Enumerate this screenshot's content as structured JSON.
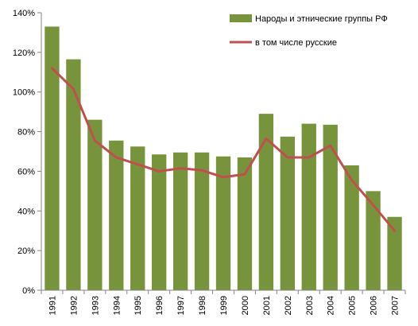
{
  "chart_data": {
    "type": "bar",
    "title": "",
    "xlabel": "",
    "ylabel": "",
    "ylim": [
      0,
      140
    ],
    "yticks": [
      0,
      20,
      40,
      60,
      80,
      100,
      120,
      140
    ],
    "ytick_suffix": "%",
    "categories": [
      "1991",
      "1992",
      "1993",
      "1994",
      "1995",
      "1996",
      "1997",
      "1998",
      "1999",
      "2000",
      "2001",
      "2002",
      "2003",
      "2004",
      "2005",
      "2006",
      "2007"
    ],
    "series": [
      {
        "name": "Народы и этнические группы РФ",
        "type": "bar",
        "color": "#77933c",
        "values": [
          133,
          116.5,
          86,
          75.5,
          72.5,
          68.5,
          69.5,
          69.5,
          67.5,
          67,
          89,
          77.5,
          84,
          83.5,
          63,
          50,
          37
        ]
      },
      {
        "name": "в том числе русские",
        "type": "line",
        "color": "#c0504d",
        "values": [
          112,
          101.5,
          75.5,
          67,
          63.5,
          60,
          61.5,
          60.5,
          57,
          58.5,
          76.5,
          67,
          67,
          73,
          55.5,
          43,
          30
        ]
      }
    ],
    "legend_position": "top-right",
    "grid": false
  }
}
